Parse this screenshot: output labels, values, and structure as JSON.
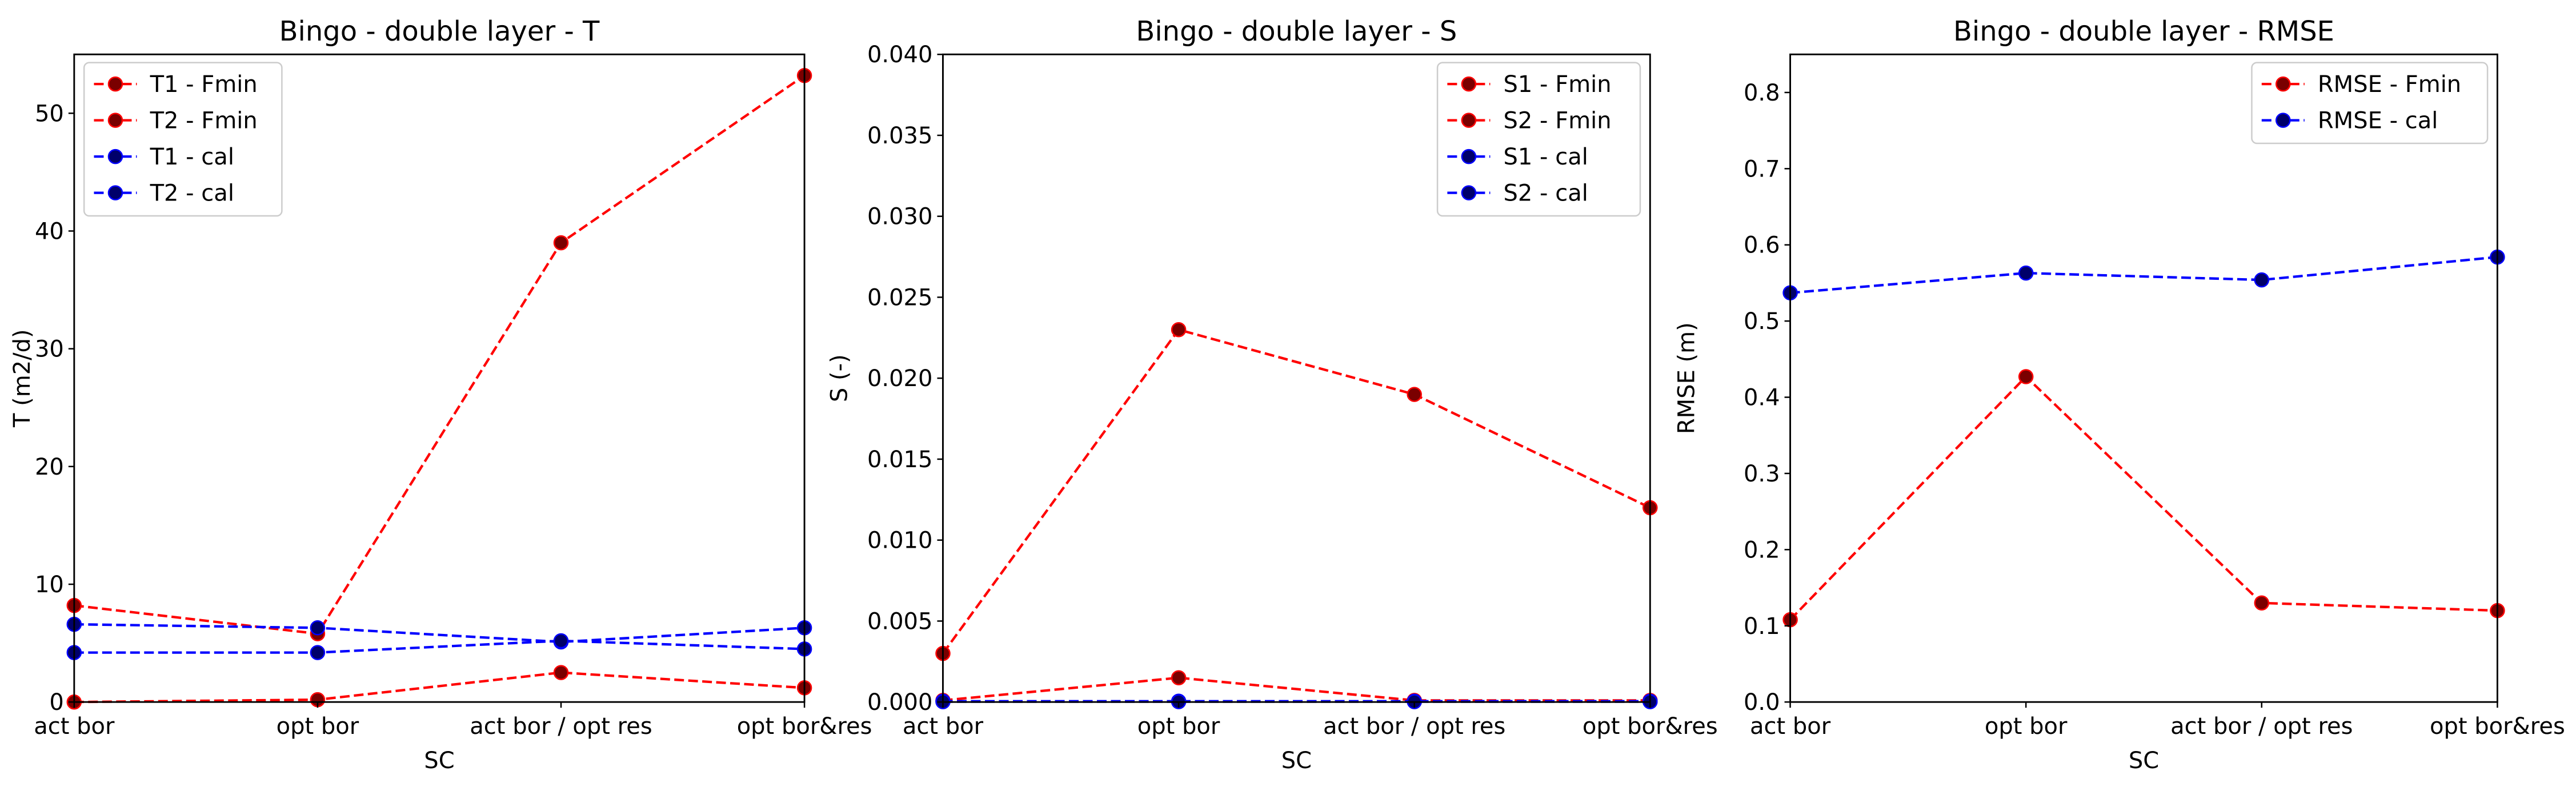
{
  "chart_data": [
    {
      "type": "line",
      "title": "Bingo - double layer - T",
      "xlabel": "SC",
      "ylabel": "T (m2/d)",
      "categories": [
        "act bor",
        "opt bor",
        "act bor / opt res",
        "opt bor&res"
      ],
      "ylim": [
        0,
        55
      ],
      "yticks": [
        0,
        10,
        20,
        30,
        40,
        50
      ],
      "ytick_labels": [
        "0",
        "10",
        "20",
        "30",
        "40",
        "50"
      ],
      "grid": false,
      "legend_position": "upper-left",
      "series": [
        {
          "name": "T1 - Fmin",
          "color": "#ff0000",
          "values": [
            8.2,
            5.8,
            39.0,
            53.2
          ]
        },
        {
          "name": "T2 - Fmin",
          "color": "#ff0000",
          "values": [
            0.0,
            0.2,
            2.5,
            1.2
          ]
        },
        {
          "name": "T1 - cal",
          "color": "#0000ff",
          "values": [
            6.6,
            6.3,
            5.1,
            6.3
          ]
        },
        {
          "name": "T2 - cal",
          "color": "#0000ff",
          "values": [
            4.2,
            4.2,
            5.2,
            4.5
          ]
        }
      ]
    },
    {
      "type": "line",
      "title": "Bingo - double layer - S",
      "xlabel": "SC",
      "ylabel": "S (-)",
      "categories": [
        "act bor",
        "opt bor",
        "act bor / opt res",
        "opt bor&res"
      ],
      "ylim": [
        0,
        0.04
      ],
      "yticks": [
        0,
        0.005,
        0.01,
        0.015,
        0.02,
        0.025,
        0.03,
        0.035,
        0.04
      ],
      "ytick_labels": [
        "0.000",
        "0.005",
        "0.010",
        "0.015",
        "0.020",
        "0.025",
        "0.030",
        "0.035",
        "0.040"
      ],
      "grid": false,
      "legend_position": "upper-right",
      "series": [
        {
          "name": "S1 - Fmin",
          "color": "#ff0000",
          "values": [
            0.003,
            0.023,
            0.019,
            0.012
          ]
        },
        {
          "name": "S2 - Fmin",
          "color": "#ff0000",
          "values": [
            0.0001,
            0.0015,
            0.0001,
            0.0001
          ]
        },
        {
          "name": "S1 - cal",
          "color": "#0000ff",
          "values": [
            5e-05,
            5e-05,
            5e-05,
            5e-05
          ]
        },
        {
          "name": "S2 - cal",
          "color": "#0000ff",
          "values": [
            2e-05,
            2e-05,
            2e-05,
            2e-05
          ]
        }
      ]
    },
    {
      "type": "line",
      "title": "Bingo - double layer - RMSE",
      "xlabel": "SC",
      "ylabel": "RMSE (m)",
      "categories": [
        "act bor",
        "opt bor",
        "act bor / opt res",
        "opt bor&res"
      ],
      "ylim": [
        0,
        0.85
      ],
      "yticks": [
        0,
        0.1,
        0.2,
        0.3,
        0.4,
        0.5,
        0.6,
        0.7,
        0.8
      ],
      "ytick_labels": [
        "0.0",
        "0.1",
        "0.2",
        "0.3",
        "0.4",
        "0.5",
        "0.6",
        "0.7",
        "0.8"
      ],
      "grid": false,
      "legend_position": "upper-right",
      "series": [
        {
          "name": "RMSE - Fmin",
          "color": "#ff0000",
          "values": [
            0.108,
            0.427,
            0.13,
            0.12
          ]
        },
        {
          "name": "RMSE - cal",
          "color": "#0000ff",
          "values": [
            0.537,
            0.563,
            0.554,
            0.584
          ]
        }
      ]
    }
  ]
}
